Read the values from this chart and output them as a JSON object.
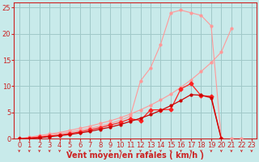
{
  "bg_color": "#c8eaea",
  "grid_color": "#a0c8c8",
  "xlabel": "Vent moyen/en rafales ( km/h )",
  "xlim": [
    -0.5,
    23.5
  ],
  "ylim": [
    0,
    26
  ],
  "yticks": [
    0,
    5,
    10,
    15,
    20,
    25
  ],
  "xticks": [
    0,
    1,
    2,
    3,
    4,
    5,
    6,
    7,
    8,
    9,
    10,
    11,
    12,
    13,
    14,
    15,
    16,
    17,
    18,
    19,
    20,
    21,
    22,
    23
  ],
  "line_pink1_x": [
    0,
    1,
    2,
    3,
    4,
    5,
    6,
    7,
    8,
    9,
    10,
    11,
    12,
    13,
    14,
    15,
    16,
    17,
    18,
    19,
    20,
    21
  ],
  "line_pink1_y": [
    0,
    0.3,
    0.6,
    0.9,
    1.2,
    1.6,
    2.0,
    2.4,
    2.9,
    3.4,
    4.0,
    4.7,
    5.5,
    6.4,
    7.4,
    8.5,
    9.8,
    11.2,
    12.8,
    14.5,
    16.5,
    21.0
  ],
  "line_pink2_x": [
    0,
    1,
    2,
    3,
    4,
    5,
    6,
    7,
    8,
    9,
    10,
    11,
    12,
    13,
    14,
    15,
    16,
    17,
    18,
    19,
    20,
    21,
    22
  ],
  "line_pink2_y": [
    0,
    0.2,
    0.4,
    0.7,
    1.0,
    1.3,
    1.6,
    2.0,
    2.4,
    2.9,
    3.5,
    4.3,
    11.0,
    13.5,
    18.0,
    24.0,
    24.5,
    24.0,
    23.5,
    21.5,
    0,
    0,
    0
  ],
  "line_red1_x": [
    0,
    1,
    2,
    3,
    4,
    5,
    6,
    7,
    8,
    9,
    10,
    11,
    12,
    13,
    14,
    15,
    16,
    17,
    18,
    19,
    20
  ],
  "line_red1_y": [
    0,
    0.1,
    0.3,
    0.5,
    0.7,
    1.0,
    1.3,
    1.7,
    2.1,
    2.6,
    3.1,
    3.8,
    3.5,
    5.5,
    5.5,
    5.6,
    9.5,
    10.5,
    8.2,
    8.1,
    0
  ],
  "line_red2_x": [
    0,
    1,
    2,
    3,
    4,
    5,
    6,
    7,
    8,
    9,
    10,
    11,
    12,
    13,
    14,
    15,
    16,
    17,
    18,
    19,
    20
  ],
  "line_red2_y": [
    0,
    0.1,
    0.2,
    0.4,
    0.6,
    0.8,
    1.1,
    1.4,
    1.8,
    2.2,
    2.7,
    3.3,
    3.9,
    4.6,
    5.4,
    6.3,
    7.3,
    8.4,
    8.3,
    7.8,
    0
  ],
  "axis_color": "#cc2222",
  "line_pink_color": "#ff9999",
  "line_red1_color": "#ff2222",
  "line_red2_color": "#cc0000",
  "tick_color": "#cc2222",
  "label_color": "#cc2222",
  "xlabel_fontsize": 7,
  "tick_fontsize": 6
}
